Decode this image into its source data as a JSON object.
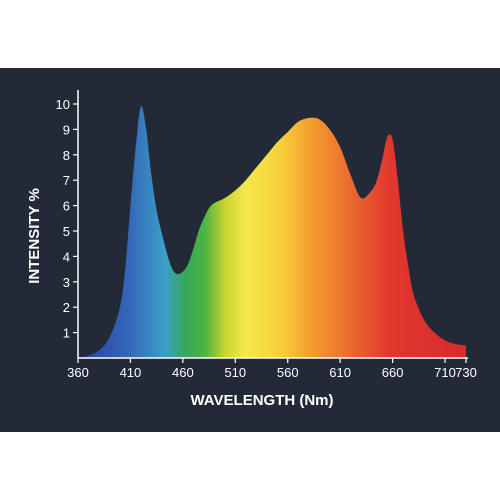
{
  "chart_data": {
    "type": "area",
    "title": "",
    "xlabel": "WAVELENGTH (Nm)",
    "ylabel": "INTENSITY %",
    "xlim": [
      360,
      730
    ],
    "ylim": [
      0,
      10
    ],
    "x_ticks": [
      360,
      410,
      460,
      510,
      560,
      610,
      660,
      710,
      730
    ],
    "y_ticks": [
      1,
      2,
      3,
      4,
      5,
      6,
      7,
      8,
      9,
      10
    ],
    "grid": false,
    "fill": "visible-spectrum gradient",
    "series": [
      {
        "x": [
          360,
          370,
          380,
          390,
          400,
          405,
          410,
          415,
          420,
          425,
          430,
          435,
          440,
          445,
          450,
          455,
          460,
          465,
          470,
          475,
          480,
          485,
          490,
          500,
          510,
          520,
          530,
          540,
          550,
          560,
          570,
          580,
          590,
          600,
          610,
          620,
          630,
          640,
          645,
          650,
          655,
          660,
          665,
          670,
          675,
          680,
          690,
          700,
          710,
          720,
          730
        ],
        "values": [
          0.0,
          0.1,
          0.3,
          0.8,
          2.0,
          3.5,
          6.0,
          8.3,
          9.9,
          9.0,
          7.2,
          5.8,
          4.9,
          4.1,
          3.5,
          3.3,
          3.4,
          3.7,
          4.3,
          5.0,
          5.5,
          5.9,
          6.1,
          6.3,
          6.6,
          7.0,
          7.5,
          8.0,
          8.5,
          8.9,
          9.3,
          9.45,
          9.4,
          9.0,
          8.3,
          7.2,
          6.3,
          6.6,
          7.0,
          7.8,
          8.7,
          8.6,
          7.0,
          5.0,
          3.6,
          2.5,
          1.5,
          1.0,
          0.7,
          0.55,
          0.5
        ]
      }
    ]
  }
}
